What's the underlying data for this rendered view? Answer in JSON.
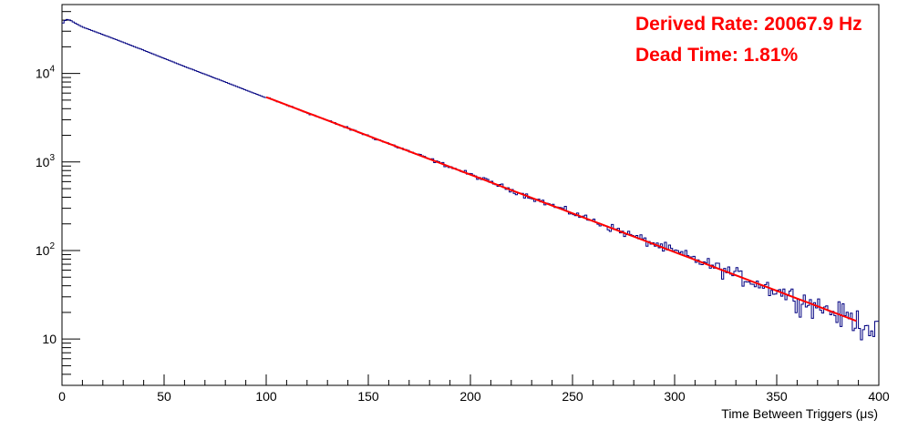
{
  "chart_data": {
    "type": "line",
    "xlabel": "Time Between Triggers (μs)",
    "ylabel": "",
    "xlim": [
      0,
      400
    ],
    "ylim": [
      3,
      60000
    ],
    "yscale": "log",
    "grid": false,
    "x_ticks": [
      "0",
      "50",
      "100",
      "150",
      "200",
      "250",
      "300",
      "350",
      "400"
    ],
    "y_ticks": [
      {
        "value": 10,
        "base": "10",
        "exp": ""
      },
      {
        "value": 100,
        "base": "10",
        "exp": "2"
      },
      {
        "value": 1000,
        "base": "10",
        "exp": "3"
      },
      {
        "value": 10000,
        "base": "10",
        "exp": "4"
      }
    ],
    "annotations": [
      "Derived Rate: 20067.9 Hz",
      "Dead Time: 1.81%"
    ],
    "series": [
      {
        "type": "histogram",
        "color": "#000080",
        "bin_width": 1,
        "model": {
          "amplitude": 40000,
          "rate_hz": 20067.9
        },
        "x": [
          0,
          2,
          4,
          6,
          10,
          20,
          30,
          40,
          50,
          60,
          70,
          80,
          90,
          100
        ],
        "y": [
          36000,
          41000,
          40000,
          37500,
          33500,
          27500,
          22500,
          18300,
          14800,
          12000,
          9800,
          8000,
          6500,
          5300
        ]
      },
      {
        "type": "fit",
        "color": "#ff0000",
        "x": [
          100,
          389
        ],
        "y": [
          5400,
          16
        ],
        "rate_hz": 20067.9
      }
    ],
    "colors": {
      "annotation": "#ff0000",
      "histogram": "#000080",
      "fit": "#ff0000"
    }
  }
}
